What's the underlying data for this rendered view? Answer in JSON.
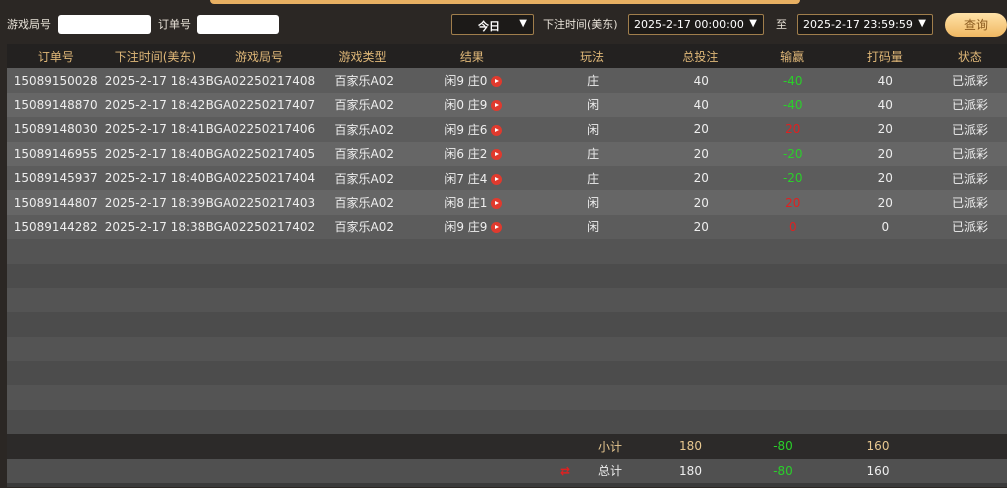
{
  "filters": {
    "round_label": "游戏局号",
    "round_value": "",
    "order_label": "订单号",
    "order_value": "",
    "period": "今日",
    "time_label": "下注时间(美东)",
    "start": "2025-2-17 00:00:00",
    "to_label": "至",
    "end": "2025-2-17 23:59:59",
    "query": "查询"
  },
  "columns": [
    "订单号",
    "下注时间(美东)",
    "游戏局号",
    "游戏类型",
    "结果",
    "玩法",
    "总投注",
    "输赢",
    "打码量",
    "状态"
  ],
  "rows": [
    {
      "order": "15089150028",
      "time": "2025-2-17 18:43",
      "round": "BGA02250217408",
      "type": "百家乐A02",
      "result": "闲9 庄0",
      "play": "庄",
      "bet": "40",
      "win": "-40",
      "valid": "40",
      "status": "已派彩"
    },
    {
      "order": "15089148870",
      "time": "2025-2-17 18:42",
      "round": "BGA02250217407",
      "type": "百家乐A02",
      "result": "闲0 庄9",
      "play": "闲",
      "bet": "40",
      "win": "-40",
      "valid": "40",
      "status": "已派彩"
    },
    {
      "order": "15089148030",
      "time": "2025-2-17 18:41",
      "round": "BGA02250217406",
      "type": "百家乐A02",
      "result": "闲9 庄6",
      "play": "闲",
      "bet": "20",
      "win": "20",
      "valid": "20",
      "status": "已派彩"
    },
    {
      "order": "15089146955",
      "time": "2025-2-17 18:40",
      "round": "BGA02250217405",
      "type": "百家乐A02",
      "result": "闲6 庄2",
      "play": "庄",
      "bet": "20",
      "win": "-20",
      "valid": "20",
      "status": "已派彩"
    },
    {
      "order": "15089145937",
      "time": "2025-2-17 18:40",
      "round": "BGA02250217404",
      "type": "百家乐A02",
      "result": "闲7 庄4",
      "play": "庄",
      "bet": "20",
      "win": "-20",
      "valid": "20",
      "status": "已派彩"
    },
    {
      "order": "15089144807",
      "time": "2025-2-17 18:39",
      "round": "BGA02250217403",
      "type": "百家乐A02",
      "result": "闲8 庄1",
      "play": "闲",
      "bet": "20",
      "win": "20",
      "valid": "20",
      "status": "已派彩"
    },
    {
      "order": "15089144282",
      "time": "2025-2-17 18:38",
      "round": "BGA02250217402",
      "type": "百家乐A02",
      "result": "闲9 庄9",
      "play": "闲",
      "bet": "20",
      "win": "0",
      "valid": "0",
      "status": "已派彩"
    }
  ],
  "subtotal": {
    "label": "小计",
    "bet": "180",
    "win": "-80",
    "valid": "160"
  },
  "total": {
    "label": "总计",
    "bet": "180",
    "win": "-80",
    "valid": "160"
  },
  "colors": {
    "loss": "#2ad02a",
    "gain": "#e02020",
    "accent": "#e0b878"
  }
}
